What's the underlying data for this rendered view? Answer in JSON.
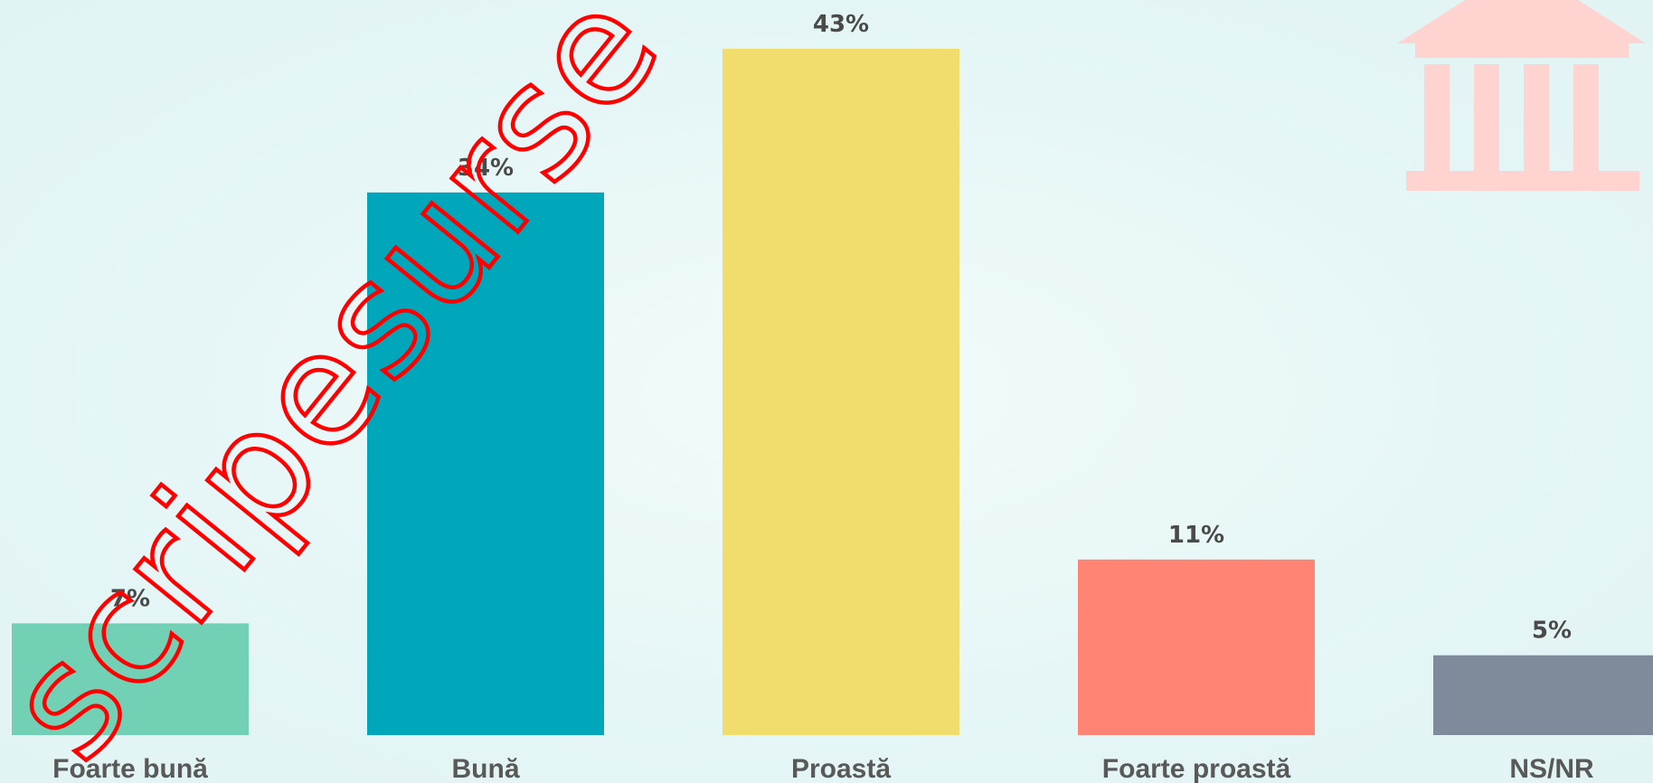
{
  "chart_data": {
    "type": "bar",
    "title": "",
    "xlabel": "",
    "ylabel": "",
    "categories": [
      "Foarte bună",
      "Bună",
      "Proastă",
      "Foarte proastă",
      "NS/NR"
    ],
    "values": [
      7,
      34,
      43,
      11,
      5
    ],
    "value_labels": [
      "7%",
      "34%",
      "43%",
      "11%",
      "5%"
    ],
    "colors": [
      "#72d0b4",
      "#00a6ba",
      "#f0dd6d",
      "#ff8474",
      "#7f8b9a"
    ],
    "ylim": [
      0,
      43
    ],
    "grid": false,
    "legend": "none"
  },
  "decorations": {
    "icon": "bank-building-icon",
    "icon_color": "#ffd3cf",
    "watermark_text": "scripesurse",
    "watermark_color": "#ff0000"
  }
}
